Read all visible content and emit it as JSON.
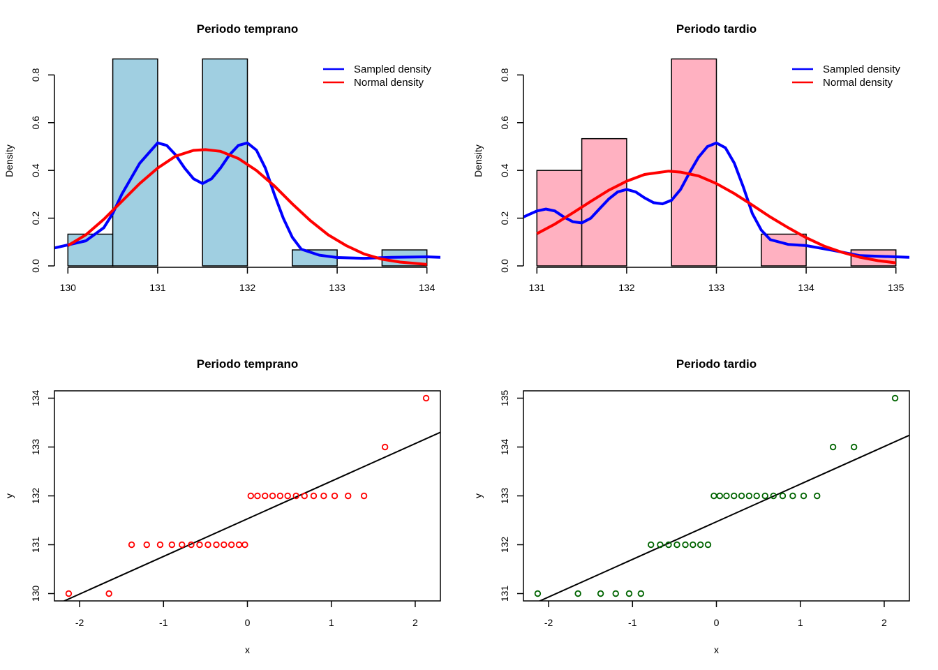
{
  "chart_data": [
    {
      "type": "histogram",
      "title": "Periodo temprano",
      "xlabel": "",
      "ylabel": "Density",
      "xlim": [
        129.85,
        134.15
      ],
      "ylim": [
        0,
        0.88
      ],
      "xticks": [
        "130",
        "131",
        "132",
        "133",
        "134"
      ],
      "yticks": [
        "0.0",
        "0.2",
        "0.4",
        "0.6",
        "0.8"
      ],
      "bar_color": "#A0CFE1",
      "bins": [
        {
          "from": 130.0,
          "to": 130.5,
          "density": 0.133
        },
        {
          "from": 130.5,
          "to": 131.0,
          "density": 0.867
        },
        {
          "from": 131.0,
          "to": 131.5,
          "density": 0.0
        },
        {
          "from": 131.5,
          "to": 132.0,
          "density": 0.867
        },
        {
          "from": 132.0,
          "to": 132.5,
          "density": 0.0
        },
        {
          "from": 132.5,
          "to": 133.0,
          "density": 0.067
        },
        {
          "from": 133.0,
          "to": 133.5,
          "density": 0.0
        },
        {
          "from": 133.5,
          "to": 134.0,
          "density": 0.067
        }
      ],
      "legend": {
        "position": "top-right",
        "entries": [
          {
            "label": "Sampled density",
            "color": "#0000FF"
          },
          {
            "label": "Normal density",
            "color": "#FF0000"
          }
        ]
      },
      "series": [
        {
          "name": "Sampled density",
          "color": "#0000FF",
          "x": [
            129.85,
            130.0,
            130.2,
            130.4,
            130.5,
            130.6,
            130.8,
            131.0,
            131.1,
            131.2,
            131.3,
            131.4,
            131.5,
            131.6,
            131.7,
            131.8,
            131.9,
            132.0,
            132.1,
            132.2,
            132.3,
            132.4,
            132.5,
            132.6,
            132.8,
            133.0,
            133.3,
            133.6,
            134.0,
            134.15
          ],
          "y": [
            0.075,
            0.088,
            0.105,
            0.16,
            0.22,
            0.3,
            0.43,
            0.515,
            0.505,
            0.465,
            0.41,
            0.365,
            0.345,
            0.365,
            0.41,
            0.465,
            0.505,
            0.515,
            0.485,
            0.41,
            0.3,
            0.2,
            0.12,
            0.07,
            0.045,
            0.035,
            0.032,
            0.036,
            0.038,
            0.036
          ]
        },
        {
          "name": "Normal density",
          "color": "#FF0000",
          "x": [
            130.0,
            130.2,
            130.4,
            130.6,
            130.8,
            131.0,
            131.2,
            131.4,
            131.533,
            131.7,
            131.9,
            132.1,
            132.3,
            132.5,
            132.7,
            132.9,
            133.1,
            133.3,
            133.5,
            133.7,
            134.0
          ],
          "y": [
            0.085,
            0.13,
            0.195,
            0.27,
            0.345,
            0.41,
            0.46,
            0.484,
            0.487,
            0.48,
            0.45,
            0.4,
            0.335,
            0.26,
            0.19,
            0.13,
            0.085,
            0.05,
            0.028,
            0.016,
            0.006
          ]
        }
      ]
    },
    {
      "type": "histogram",
      "title": "Periodo tardio",
      "xlabel": "",
      "ylabel": "Density",
      "xlim": [
        130.85,
        135.15
      ],
      "ylim": [
        0,
        0.88
      ],
      "xticks": [
        "131",
        "132",
        "133",
        "134",
        "135"
      ],
      "yticks": [
        "0.0",
        "0.2",
        "0.4",
        "0.6",
        "0.8"
      ],
      "bar_color": "#FFB1C1",
      "bins": [
        {
          "from": 131.0,
          "to": 131.5,
          "density": 0.4
        },
        {
          "from": 131.5,
          "to": 132.0,
          "density": 0.533
        },
        {
          "from": 132.0,
          "to": 132.5,
          "density": 0.0
        },
        {
          "from": 132.5,
          "to": 133.0,
          "density": 0.867
        },
        {
          "from": 133.0,
          "to": 133.5,
          "density": 0.0
        },
        {
          "from": 133.5,
          "to": 134.0,
          "density": 0.133
        },
        {
          "from": 134.0,
          "to": 134.5,
          "density": 0.0
        },
        {
          "from": 134.5,
          "to": 135.0,
          "density": 0.067
        }
      ],
      "legend": {
        "position": "top-right",
        "entries": [
          {
            "label": "Sampled density",
            "color": "#0000FF"
          },
          {
            "label": "Normal density",
            "color": "#FF0000"
          }
        ]
      },
      "series": [
        {
          "name": "Sampled density",
          "color": "#0000FF",
          "x": [
            130.85,
            131.0,
            131.1,
            131.2,
            131.3,
            131.4,
            131.5,
            131.6,
            131.7,
            131.8,
            131.9,
            132.0,
            132.1,
            132.2,
            132.3,
            132.4,
            132.5,
            132.6,
            132.7,
            132.8,
            132.9,
            133.0,
            133.1,
            133.2,
            133.3,
            133.4,
            133.5,
            133.6,
            133.8,
            134.0,
            134.3,
            134.6,
            135.0,
            135.15
          ],
          "y": [
            0.205,
            0.23,
            0.238,
            0.23,
            0.205,
            0.185,
            0.18,
            0.2,
            0.24,
            0.28,
            0.31,
            0.32,
            0.31,
            0.285,
            0.265,
            0.26,
            0.275,
            0.32,
            0.39,
            0.455,
            0.5,
            0.515,
            0.495,
            0.43,
            0.33,
            0.22,
            0.15,
            0.11,
            0.09,
            0.085,
            0.065,
            0.043,
            0.038,
            0.036
          ]
        },
        {
          "name": "Normal density",
          "color": "#FF0000",
          "x": [
            131.0,
            131.2,
            131.4,
            131.6,
            131.8,
            132.0,
            132.2,
            132.467,
            132.6,
            132.8,
            133.0,
            133.2,
            133.4,
            133.6,
            133.8,
            134.0,
            134.2,
            134.4,
            134.6,
            134.8,
            135.0
          ],
          "y": [
            0.135,
            0.175,
            0.222,
            0.27,
            0.317,
            0.355,
            0.383,
            0.397,
            0.393,
            0.377,
            0.345,
            0.303,
            0.255,
            0.205,
            0.16,
            0.118,
            0.083,
            0.057,
            0.036,
            0.022,
            0.013
          ]
        }
      ]
    },
    {
      "type": "scatter",
      "title": "Periodo temprano",
      "xlabel": "x",
      "ylabel": "y",
      "xlim": [
        -2.3,
        2.3
      ],
      "ylim": [
        129.85,
        134.15
      ],
      "xticks": [
        "-2",
        "-1",
        "0",
        "1",
        "2"
      ],
      "yticks": [
        "130",
        "131",
        "132",
        "133",
        "134"
      ],
      "point_color": "#FF0000",
      "x": [
        -2.13,
        -1.65,
        -1.38,
        -1.2,
        -1.04,
        -0.9,
        -0.78,
        -0.67,
        -0.57,
        -0.47,
        -0.37,
        -0.28,
        -0.19,
        -0.1,
        -0.03,
        0.04,
        0.12,
        0.21,
        0.3,
        0.39,
        0.48,
        0.58,
        0.68,
        0.79,
        0.91,
        1.04,
        1.2,
        1.39,
        1.64,
        2.13
      ],
      "y": [
        130,
        130,
        131,
        131,
        131,
        131,
        131,
        131,
        131,
        131,
        131,
        131,
        131,
        131,
        131,
        132,
        132,
        132,
        132,
        132,
        132,
        132,
        132,
        132,
        132,
        132,
        132,
        132,
        133,
        134
      ],
      "line": {
        "intercept": 131.53,
        "slope": 0.77,
        "color": "#000000"
      }
    },
    {
      "type": "scatter",
      "title": "Periodo tardio",
      "xlabel": "x",
      "ylabel": "y",
      "xlim": [
        -2.3,
        2.3
      ],
      "ylim": [
        130.85,
        135.15
      ],
      "xticks": [
        "-2",
        "-1",
        "0",
        "1",
        "2"
      ],
      "yticks": [
        "131",
        "132",
        "133",
        "134",
        "135"
      ],
      "point_color": "#006400",
      "x": [
        -2.13,
        -1.65,
        -1.38,
        -1.2,
        -1.04,
        -0.9,
        -0.78,
        -0.67,
        -0.57,
        -0.47,
        -0.37,
        -0.28,
        -0.19,
        -0.1,
        -0.03,
        0.04,
        0.12,
        0.21,
        0.3,
        0.39,
        0.48,
        0.58,
        0.68,
        0.79,
        0.91,
        1.04,
        1.2,
        1.39,
        1.64,
        2.13
      ],
      "y": [
        131,
        131,
        131,
        131,
        131,
        131,
        132,
        132,
        132,
        132,
        132,
        132,
        132,
        132,
        133,
        133,
        133,
        133,
        133,
        133,
        133,
        133,
        133,
        133,
        133,
        133,
        133,
        134,
        134,
        135
      ],
      "line": {
        "intercept": 132.47,
        "slope": 0.77,
        "color": "#000000"
      }
    }
  ]
}
